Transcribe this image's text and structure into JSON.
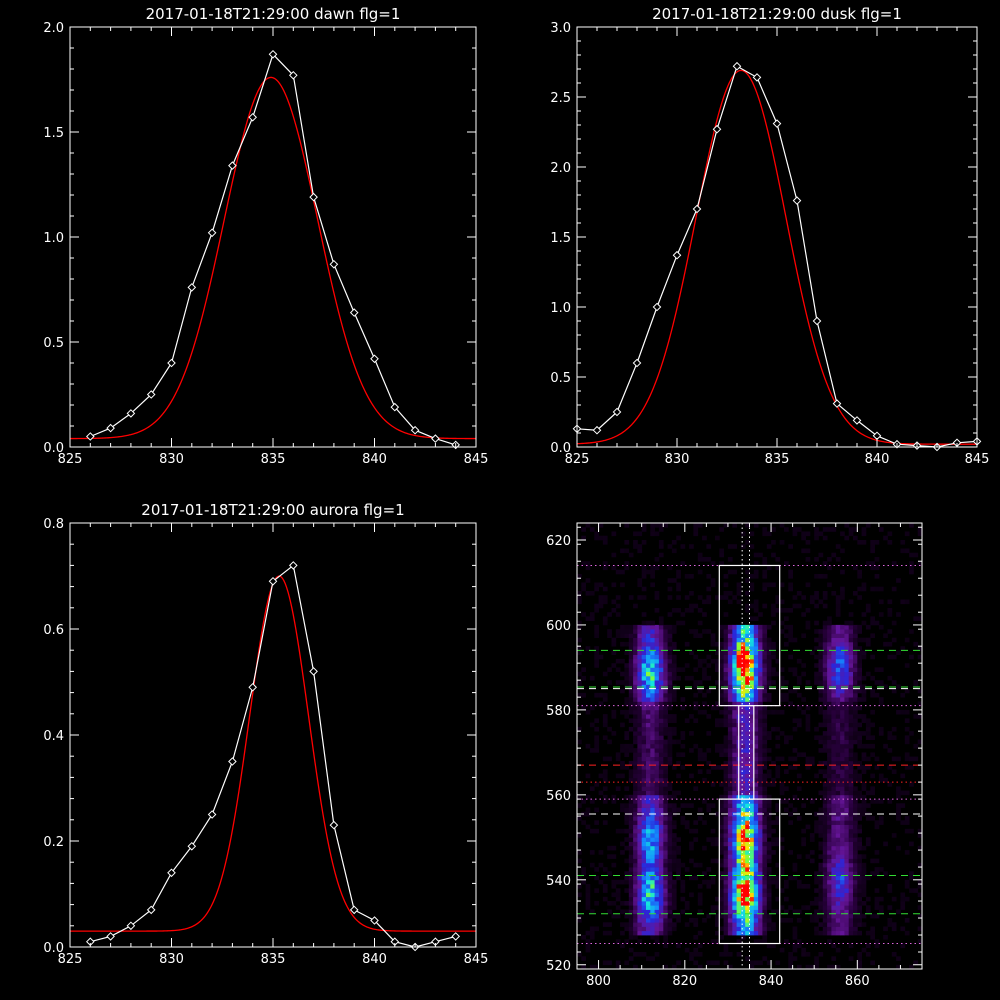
{
  "colors": {
    "background": "#000000",
    "axes": "#ffffff",
    "observed": "#ffffff",
    "fit": "#ff0000"
  },
  "chart_data": [
    {
      "type": "line",
      "title": "2017-01-18T21:29:00 dawn flg=1",
      "xlim": [
        825,
        845
      ],
      "ylim": [
        0,
        2.0
      ],
      "xticks": [
        825,
        830,
        835,
        840,
        845
      ],
      "xtick_labels": [
        "825",
        "830",
        "835",
        "840",
        "845"
      ],
      "yticks": [
        0,
        0.5,
        1.0,
        1.5,
        2.0
      ],
      "ytick_labels": [
        "0.0",
        "0.5",
        "1.0",
        "1.5",
        "2.0"
      ],
      "observed": {
        "x": [
          826,
          827,
          828,
          829,
          830,
          831,
          832,
          833,
          834,
          835,
          836,
          837,
          838,
          839,
          840,
          841,
          842,
          843,
          844
        ],
        "y": [
          0.05,
          0.09,
          0.16,
          0.25,
          0.4,
          0.76,
          1.02,
          1.34,
          1.57,
          1.87,
          1.77,
          1.19,
          0.87,
          0.64,
          0.42,
          0.19,
          0.08,
          0.04,
          0.01
        ]
      },
      "fit": {
        "type": "gaussian",
        "amplitude": 1.72,
        "center": 834.9,
        "sigma": 2.3,
        "offset": 0.04
      }
    },
    {
      "type": "line",
      "title": "2017-01-18T21:29:00 dusk flg=1",
      "xlim": [
        825,
        845
      ],
      "ylim": [
        0,
        3.0
      ],
      "xticks": [
        825,
        830,
        835,
        840,
        845
      ],
      "xtick_labels": [
        "825",
        "830",
        "835",
        "840",
        "845"
      ],
      "yticks": [
        0,
        0.5,
        1.0,
        1.5,
        2.0,
        2.5,
        3.0
      ],
      "ytick_labels": [
        "0.0",
        "0.5",
        "1.0",
        "1.5",
        "2.0",
        "2.5",
        "3.0"
      ],
      "observed": {
        "x": [
          825,
          826,
          827,
          828,
          829,
          830,
          831,
          832,
          833,
          834,
          835,
          836,
          837,
          838,
          839,
          840,
          841,
          842,
          843,
          844,
          845
        ],
        "y": [
          0.13,
          0.12,
          0.25,
          0.6,
          1.0,
          1.37,
          1.7,
          2.27,
          2.72,
          2.64,
          2.31,
          1.76,
          0.9,
          0.31,
          0.19,
          0.08,
          0.02,
          0.01,
          0.0,
          0.03,
          0.04
        ]
      },
      "fit": {
        "type": "gaussian",
        "amplitude": 2.67,
        "center": 833.2,
        "sigma": 2.25,
        "offset": 0.02
      }
    },
    {
      "type": "line",
      "title": "2017-01-18T21:29:00 aurora flg=1",
      "xlim": [
        825,
        845
      ],
      "ylim": [
        0,
        0.8
      ],
      "xticks": [
        825,
        830,
        835,
        840,
        845
      ],
      "xtick_labels": [
        "825",
        "830",
        "835",
        "840",
        "845"
      ],
      "yticks": [
        0,
        0.2,
        0.4,
        0.6,
        0.8
      ],
      "ytick_labels": [
        "0.0",
        "0.2",
        "0.4",
        "0.6",
        "0.8"
      ],
      "observed": {
        "x": [
          826,
          827,
          828,
          829,
          830,
          831,
          832,
          833,
          834,
          835,
          836,
          837,
          838,
          839,
          840,
          841,
          842,
          843,
          844
        ],
        "y": [
          0.01,
          0.02,
          0.04,
          0.07,
          0.14,
          0.19,
          0.25,
          0.35,
          0.49,
          0.69,
          0.72,
          0.52,
          0.23,
          0.07,
          0.05,
          0.01,
          0.0,
          0.01,
          0.02
        ]
      },
      "fit": {
        "type": "gaussian",
        "amplitude": 0.67,
        "center": 835.3,
        "sigma": 1.45,
        "offset": 0.03
      }
    },
    {
      "type": "heatmap",
      "title": "",
      "xlim": [
        795,
        875
      ],
      "ylim": [
        519,
        624
      ],
      "xticks": [
        800,
        820,
        840,
        860
      ],
      "xtick_labels": [
        "800",
        "820",
        "840",
        "860"
      ],
      "yticks": [
        520,
        540,
        560,
        580,
        600,
        620
      ],
      "ytick_labels": [
        "520",
        "540",
        "560",
        "580",
        "600",
        "620"
      ],
      "emission_columns": [
        {
          "center": 812,
          "strength": 0.55
        },
        {
          "center": 834,
          "strength": 1.0
        },
        {
          "center": 856,
          "strength": 0.35
        }
      ],
      "bright_spots": [
        {
          "x": 834,
          "y": 590,
          "value": 1.0
        },
        {
          "x": 812,
          "y": 589,
          "value": 0.65
        },
        {
          "x": 856,
          "y": 590,
          "value": 0.45
        },
        {
          "x": 834,
          "y": 537,
          "value": 0.9
        },
        {
          "x": 812,
          "y": 537,
          "value": 0.6
        },
        {
          "x": 834,
          "y": 550,
          "value": 0.7
        },
        {
          "x": 812,
          "y": 550,
          "value": 0.45
        },
        {
          "x": 856,
          "y": 540,
          "value": 0.35
        }
      ],
      "boxes": [
        {
          "x0": 828,
          "x1": 842,
          "y0": 581,
          "y1": 614
        },
        {
          "x0": 828,
          "x1": 842,
          "y0": 525,
          "y1": 559
        },
        {
          "x0": 832.5,
          "x1": 836,
          "y0": 559,
          "y1": 581
        }
      ],
      "vlines": [
        {
          "x": 833.3,
          "style": "dotted",
          "color": "#ffffff"
        },
        {
          "x": 835.0,
          "style": "dotted",
          "color": "#ffffff"
        }
      ],
      "hlines": [
        {
          "y": 614,
          "style": "dotted",
          "color": "#dd66dd"
        },
        {
          "y": 594,
          "style": "dashed",
          "color": "#33dd33"
        },
        {
          "y": 585,
          "style": "dashed",
          "color": "#ffffff"
        },
        {
          "y": 585.4,
          "style": "dashed",
          "color": "#33dd33"
        },
        {
          "y": 581,
          "style": "dotted",
          "color": "#dd66dd"
        },
        {
          "y": 567,
          "style": "dashed",
          "color": "#ff2222"
        },
        {
          "y": 563,
          "style": "dotted",
          "color": "#ff2222"
        },
        {
          "y": 559,
          "style": "dotted",
          "color": "#dd66dd"
        },
        {
          "y": 555.5,
          "style": "dashed",
          "color": "#ffffff"
        },
        {
          "y": 541,
          "style": "dashed",
          "color": "#33dd33"
        },
        {
          "y": 532,
          "style": "dashed",
          "color": "#33dd33"
        },
        {
          "y": 525,
          "style": "dotted",
          "color": "#dd66dd"
        }
      ]
    }
  ]
}
